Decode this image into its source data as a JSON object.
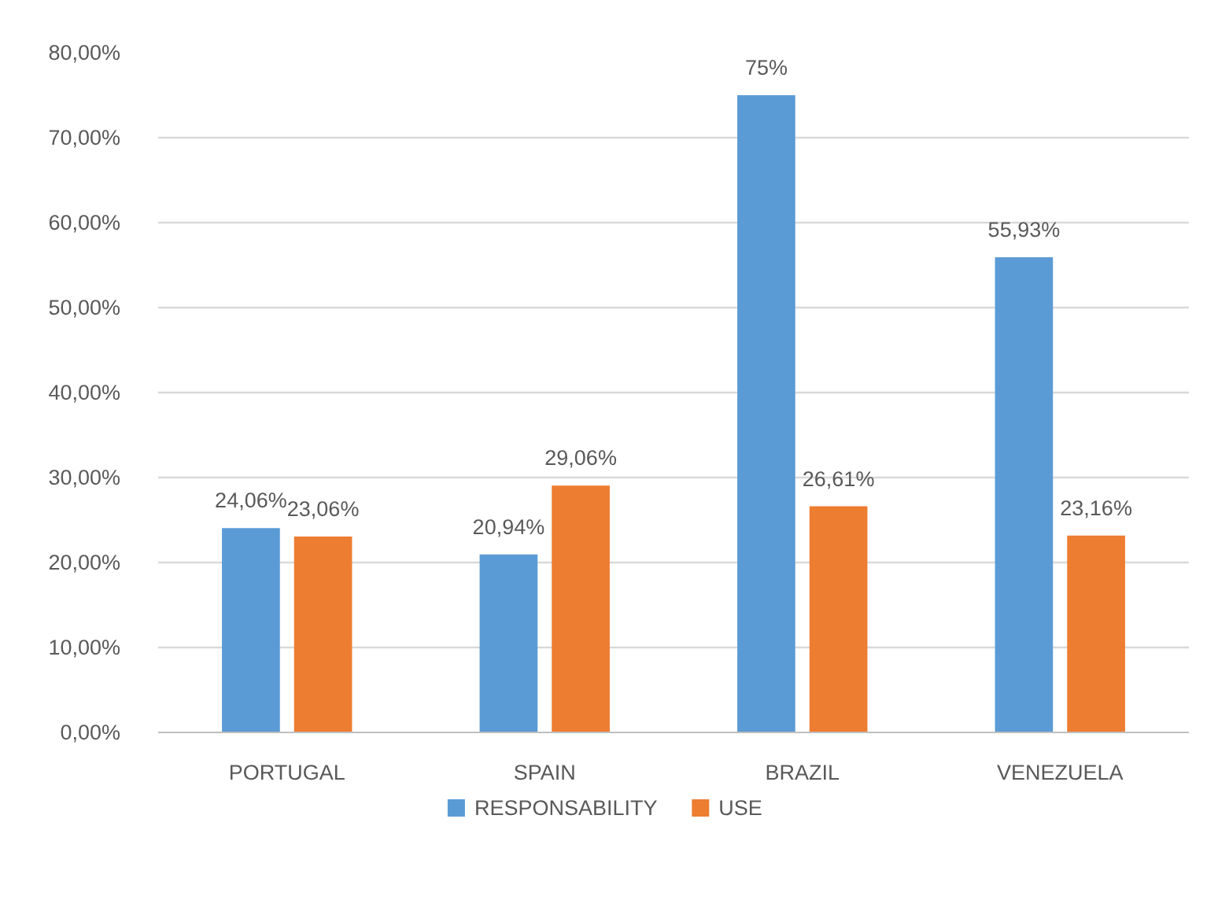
{
  "chart_data": {
    "type": "bar",
    "categories": [
      "PORTUGAL",
      "SPAIN",
      "BRAZIL",
      "VENEZUELA"
    ],
    "series": [
      {
        "name": "RESPONSABILITY",
        "color": "#5b9bd5",
        "values": [
          24.06,
          20.94,
          75,
          55.93
        ],
        "value_labels": [
          "24,06%",
          "20,94%",
          "75%",
          "55,93%"
        ]
      },
      {
        "name": "USE",
        "color": "#ed7d31",
        "values": [
          23.06,
          29.06,
          26.61,
          23.16
        ],
        "value_labels": [
          "23,06%",
          "29,06%",
          "26,61%",
          "23,16%"
        ]
      }
    ],
    "ylim": [
      0,
      80
    ],
    "yticks": [
      {
        "value": 0,
        "label": "0,00%"
      },
      {
        "value": 10,
        "label": "10,00%"
      },
      {
        "value": 20,
        "label": "20,00%"
      },
      {
        "value": 30,
        "label": "30,00%"
      },
      {
        "value": 40,
        "label": "40,00%"
      },
      {
        "value": 50,
        "label": "50,00%"
      },
      {
        "value": 60,
        "label": "60,00%"
      },
      {
        "value": 70,
        "label": "70,00%"
      },
      {
        "value": 80,
        "label": "80,00%"
      }
    ],
    "grid": "y",
    "legend": "bottom"
  }
}
